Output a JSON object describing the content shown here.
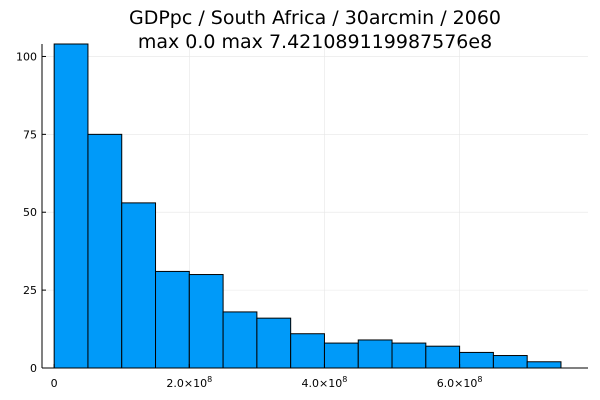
{
  "chart_data": {
    "type": "bar",
    "title": "GDPpc / South Africa / 30arcmin / 2060",
    "subtitle": "max 0.0  max 7.421089119987576e8",
    "xlabel": "",
    "ylabel": "",
    "bin_edges": [
      0,
      50000000,
      100000000,
      150000000,
      200000000,
      250000000,
      300000000,
      350000000,
      400000000,
      450000000,
      500000000,
      550000000,
      600000000,
      650000000,
      700000000,
      750000000
    ],
    "values": [
      104,
      75,
      53,
      31,
      30,
      18,
      16,
      11,
      8,
      9,
      8,
      7,
      5,
      4,
      2
    ],
    "xlim": [
      -18000000,
      790000000
    ],
    "ylim": [
      0,
      104
    ],
    "y_ticks": [
      0,
      25,
      50,
      75,
      100
    ],
    "x_ticks": [
      {
        "value": 0,
        "mantissa": "0",
        "exponent": ""
      },
      {
        "value": 200000000,
        "mantissa": "2.0×10",
        "exponent": "8"
      },
      {
        "value": 400000000,
        "mantissa": "4.0×10",
        "exponent": "8"
      },
      {
        "value": 600000000,
        "mantissa": "6.0×10",
        "exponent": "8"
      }
    ],
    "bar_color": "#009af9",
    "grid": true,
    "legend": "none"
  }
}
